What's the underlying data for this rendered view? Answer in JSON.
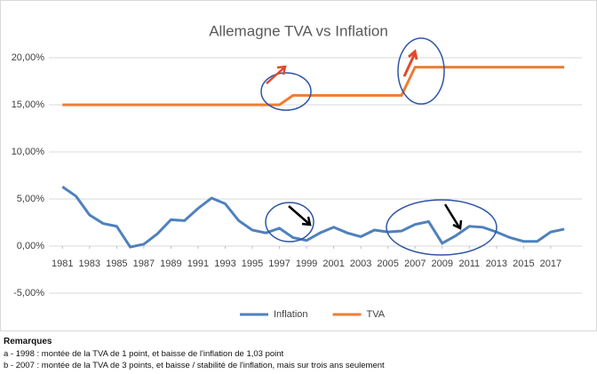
{
  "chart_data": {
    "type": "line",
    "title": "Allemagne TVA vs Inflation",
    "x": [
      1981,
      1982,
      1983,
      1984,
      1985,
      1986,
      1987,
      1988,
      1989,
      1990,
      1991,
      1992,
      1993,
      1994,
      1995,
      1996,
      1997,
      1998,
      1999,
      2000,
      2001,
      2002,
      2003,
      2004,
      2005,
      2006,
      2007,
      2008,
      2009,
      2010,
      2011,
      2012,
      2013,
      2014,
      2015,
      2016,
      2017,
      2018
    ],
    "series": [
      {
        "name": "Inflation",
        "color": "#4f81bd",
        "values": [
          6.3,
          5.3,
          3.3,
          2.4,
          2.1,
          -0.1,
          0.2,
          1.3,
          2.8,
          2.7,
          4.0,
          5.1,
          4.5,
          2.7,
          1.7,
          1.4,
          1.9,
          0.9,
          0.6,
          1.4,
          2.0,
          1.4,
          1.0,
          1.7,
          1.5,
          1.6,
          2.3,
          2.6,
          0.3,
          1.1,
          2.1,
          2.0,
          1.5,
          0.9,
          0.5,
          0.5,
          1.5,
          1.8
        ]
      },
      {
        "name": "TVA",
        "color": "#ed7d31",
        "values": [
          15,
          15,
          15,
          15,
          15,
          15,
          15,
          15,
          15,
          15,
          15,
          15,
          15,
          15,
          15,
          15,
          15,
          16,
          16,
          16,
          16,
          16,
          16,
          16,
          16,
          16,
          19,
          19,
          19,
          19,
          19,
          19,
          19,
          19,
          19,
          19,
          19,
          19
        ]
      }
    ],
    "xlim": [
      1980,
      2019.3
    ],
    "xticks": [
      1981,
      1983,
      1985,
      1987,
      1989,
      1991,
      1993,
      1995,
      1997,
      1999,
      2001,
      2003,
      2005,
      2007,
      2009,
      2011,
      2013,
      2015,
      2017
    ],
    "ylim": [
      -6.5,
      23
    ],
    "yticks": [
      {
        "value": -5,
        "label": "-5,00%"
      },
      {
        "value": 0,
        "label": "0,00%"
      },
      {
        "value": 5,
        "label": "5,00%"
      },
      {
        "value": 10,
        "label": "10,00%"
      },
      {
        "value": 15,
        "label": "15,00%"
      },
      {
        "value": 20,
        "label": "20,00%"
      }
    ],
    "grid": true,
    "legend": "bottom"
  },
  "remarks": {
    "title": "Remarques",
    "items": [
      "a - 1998 : montée de la TVA de 1 point, et baisse de l'inflation de 1,03 point",
      "b - 2007 : montée de la TVA de 3 points, et baisse / stabilité de l'inflation, mais sur trois ans seulement"
    ]
  }
}
